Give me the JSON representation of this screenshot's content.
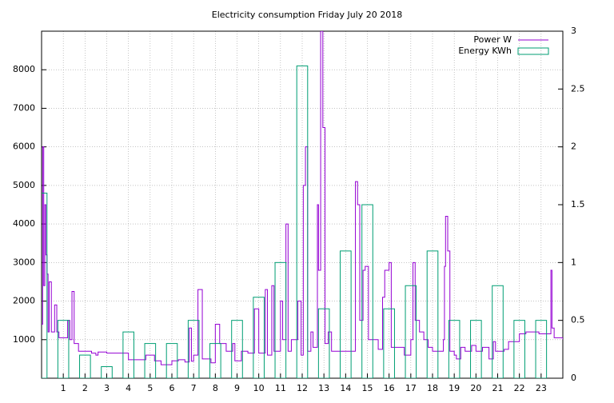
{
  "chart_data": {
    "type": "combo",
    "title": "Electricity consumption Friday July 20 2018",
    "xlim": [
      0,
      24
    ],
    "xticks": [
      1,
      2,
      3,
      4,
      5,
      6,
      7,
      8,
      9,
      10,
      11,
      12,
      13,
      14,
      15,
      16,
      17,
      18,
      19,
      20,
      21,
      22,
      23
    ],
    "ylim": [
      0,
      9000
    ],
    "yticks": [
      1000,
      2000,
      3000,
      4000,
      5000,
      6000,
      7000,
      8000
    ],
    "y2lim": [
      0,
      3
    ],
    "y2ticks": [
      0,
      0.5,
      1,
      1.5,
      2,
      2.5,
      3
    ],
    "grid": true,
    "legend": "top-right",
    "series": [
      {
        "name": "Power W",
        "type": "line",
        "color": "#9400d3",
        "x": [
          0,
          0.05,
          0.1,
          0.15,
          0.2,
          0.25,
          0.3,
          0.35,
          0.45,
          0.6,
          0.7,
          0.8,
          1.0,
          1.2,
          1.3,
          1.4,
          1.5,
          1.7,
          2.3,
          2.5,
          2.6,
          3.0,
          3.5,
          4.0,
          4.8,
          5.2,
          5.5,
          6.0,
          6.3,
          6.6,
          6.8,
          6.9,
          7.0,
          7.2,
          7.4,
          7.8,
          8.0,
          8.2,
          8.5,
          8.8,
          8.9,
          9.2,
          9.5,
          9.8,
          10.0,
          10.3,
          10.4,
          10.6,
          10.7,
          11.0,
          11.1,
          11.25,
          11.35,
          11.5,
          11.8,
          11.95,
          12.05,
          12.15,
          12.25,
          12.4,
          12.5,
          12.7,
          12.75,
          12.85,
          12.95,
          13.05,
          13.2,
          13.35,
          14.0,
          14.3,
          14.45,
          14.55,
          14.65,
          14.8,
          14.9,
          15.05,
          15.3,
          15.5,
          15.7,
          15.8,
          16.0,
          16.1,
          16.5,
          16.7,
          17.0,
          17.1,
          17.2,
          17.4,
          17.6,
          17.8,
          18.0,
          18.4,
          18.5,
          18.55,
          18.6,
          18.7,
          18.8,
          19.0,
          19.1,
          19.3,
          19.5,
          19.8,
          20.0,
          20.3,
          20.6,
          20.8,
          20.9,
          21.3,
          21.5,
          21.9,
          22.0,
          22.3,
          22.7,
          22.9,
          23.3,
          23.45,
          23.5,
          23.6,
          24
        ],
        "values": [
          1400,
          6000,
          2400,
          4500,
          3200,
          2700,
          1200,
          2500,
          1200,
          1900,
          1200,
          1050,
          1050,
          1500,
          1000,
          2250,
          900,
          700,
          650,
          600,
          680,
          650,
          650,
          480,
          600,
          450,
          350,
          450,
          480,
          420,
          1300,
          440,
          600,
          2300,
          500,
          400,
          1400,
          900,
          700,
          900,
          450,
          700,
          650,
          1800,
          650,
          2300,
          600,
          2400,
          700,
          2000,
          1000,
          4000,
          700,
          1000,
          2000,
          600,
          5000,
          6000,
          700,
          1200,
          800,
          4500,
          2800,
          9000,
          6500,
          900,
          1200,
          700,
          700,
          700,
          5100,
          4500,
          1500,
          2800,
          2900,
          1000,
          1000,
          750,
          2100,
          2800,
          3000,
          800,
          800,
          600,
          1000,
          3000,
          1500,
          1200,
          1000,
          800,
          700,
          700,
          1000,
          2900,
          4200,
          3300,
          700,
          600,
          500,
          800,
          700,
          850,
          700,
          800,
          500,
          950,
          700,
          750,
          950,
          950,
          1150,
          1200,
          1200,
          1150,
          1150,
          2800,
          1300,
          1050,
          1000
        ]
      },
      {
        "name": "Energy KWh",
        "type": "bar",
        "axis": "y2",
        "color": "#009e73",
        "x": [
          0,
          1,
          2,
          3,
          4,
          5,
          6,
          7,
          8,
          9,
          10,
          11,
          12,
          13,
          14,
          15,
          16,
          17,
          18,
          19,
          20,
          21,
          22,
          23
        ],
        "values": [
          1.6,
          0.5,
          0.2,
          0.1,
          0.4,
          0.3,
          0.3,
          0.5,
          0.3,
          0.5,
          0.7,
          1.0,
          2.7,
          0.6,
          1.1,
          1.5,
          0.6,
          0.8,
          1.1,
          0.5,
          0.5,
          0.8,
          0.5,
          0.5
        ]
      }
    ]
  }
}
